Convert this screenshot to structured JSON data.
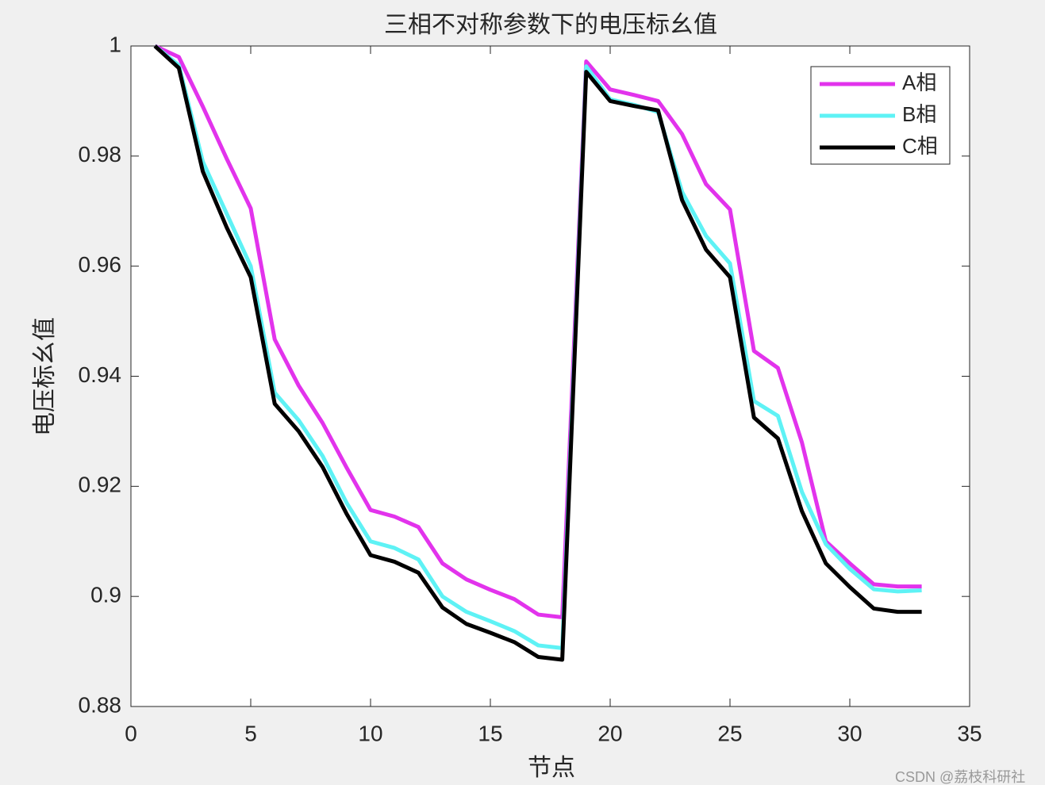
{
  "chart_data": {
    "type": "line",
    "title": "三相不对称参数下的电压标幺值",
    "x_label": "节点",
    "y_label": "电压标幺值",
    "x": [
      1,
      2,
      3,
      4,
      5,
      6,
      7,
      8,
      9,
      10,
      11,
      12,
      13,
      14,
      15,
      16,
      17,
      18,
      19,
      20,
      21,
      22,
      23,
      24,
      25,
      26,
      27,
      28,
      29,
      30,
      31,
      32,
      33
    ],
    "series": [
      {
        "name": "A相",
        "color": "#e233ec",
        "values": [
          1.0,
          0.998,
          0.989,
          0.9795,
          0.9705,
          0.9467,
          0.9383,
          0.9315,
          0.9234,
          0.9157,
          0.9145,
          0.9126,
          0.906,
          0.9031,
          0.9012,
          0.8995,
          0.8967,
          0.8962,
          0.9972,
          0.9921,
          0.9911,
          0.99,
          0.984,
          0.9749,
          0.9703,
          0.9446,
          0.9415,
          0.928,
          0.91,
          0.906,
          0.9022,
          0.9018,
          0.9018
        ]
      },
      {
        "name": "B相",
        "color": "#5ef2f5",
        "values": [
          1.0,
          0.9965,
          0.979,
          0.9695,
          0.96,
          0.937,
          0.932,
          0.9255,
          0.917,
          0.91,
          0.9088,
          0.9067,
          0.9,
          0.8972,
          0.8955,
          0.8937,
          0.8911,
          0.8906,
          0.9963,
          0.9903,
          0.9893,
          0.988,
          0.9735,
          0.9655,
          0.9605,
          0.9355,
          0.9328,
          0.919,
          0.9095,
          0.905,
          0.9013,
          0.9009,
          0.9011
        ]
      },
      {
        "name": "C相",
        "color": "#000000",
        "values": [
          1.0,
          0.996,
          0.9772,
          0.967,
          0.958,
          0.935,
          0.93,
          0.9235,
          0.915,
          0.9075,
          0.9063,
          0.9043,
          0.898,
          0.895,
          0.8934,
          0.8917,
          0.889,
          0.8885,
          0.9953,
          0.99,
          0.9891,
          0.9883,
          0.972,
          0.963,
          0.958,
          0.9325,
          0.9287,
          0.9155,
          0.906,
          0.9017,
          0.8978,
          0.8972,
          0.8972
        ]
      }
    ],
    "xlim": [
      0,
      35
    ],
    "xticks": [
      0,
      5,
      10,
      15,
      20,
      25,
      30,
      35
    ],
    "ylim": [
      0.88,
      1
    ],
    "yticks": [
      0.88,
      0.9,
      0.92,
      0.94,
      0.96,
      0.98,
      1
    ],
    "legend": "top-right",
    "watermark": "CSDN @荔枝科研社"
  }
}
